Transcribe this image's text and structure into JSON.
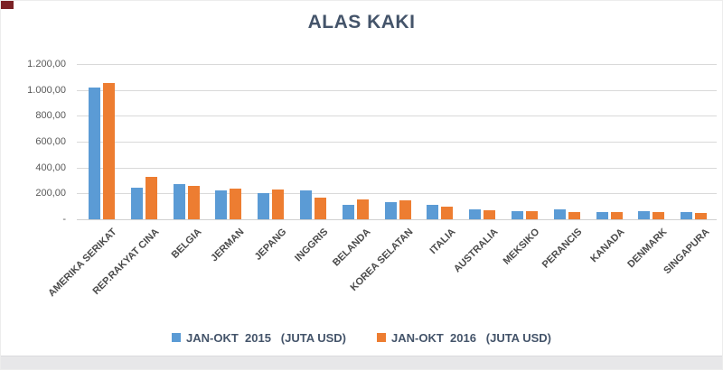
{
  "title": "ALAS KAKI",
  "colors": {
    "title_text": "#44546a",
    "axis_text": "#595959",
    "category_text": "#4a4a4a",
    "gridline": "#d9d9d9",
    "series_2015": "#5b9bd5",
    "series_2016": "#ed7d31",
    "corner_mark": "#7b2125"
  },
  "y_axis": {
    "tick_labels": [
      "1.200,00",
      "1.000,00",
      "800,00",
      "600,00",
      "400,00",
      "200,00",
      "-"
    ],
    "tick_values": [
      1200,
      1000,
      800,
      600,
      400,
      200,
      0
    ]
  },
  "legend": {
    "items": [
      {
        "label": "JAN-OKT  2015   (JUTA USD)",
        "color": "#5b9bd5"
      },
      {
        "label": "JAN-OKT  2016   (JUTA USD)",
        "color": "#ed7d31"
      }
    ]
  },
  "chart_data": {
    "type": "bar",
    "title": "ALAS KAKI",
    "xlabel": "",
    "ylabel": "JUTA USD",
    "ylim": [
      0,
      1200
    ],
    "ytick_step": 200,
    "grid": true,
    "legend_position": "bottom",
    "categories": [
      "AMERIKA SERIKAT",
      "REP.RAKYAT CINA",
      "BELGIA",
      "JERMAN",
      "JEPANG",
      "INGGRIS",
      "BELANDA",
      "KOREA SELATAN",
      "ITALIA",
      "AUSTRALIA",
      "MEKSIKO",
      "PERANCIS",
      "KANADA",
      "DENMARK",
      "SINGAPURA"
    ],
    "series": [
      {
        "name": "JAN-OKT 2015 (JUTA USD)",
        "color": "#5b9bd5",
        "values": [
          1020,
          245,
          270,
          225,
          205,
          220,
          115,
          130,
          110,
          75,
          60,
          75,
          55,
          60,
          55
        ]
      },
      {
        "name": "JAN-OKT 2016 (JUTA USD)",
        "color": "#ed7d31",
        "values": [
          1055,
          325,
          255,
          240,
          230,
          170,
          155,
          150,
          95,
          70,
          60,
          55,
          55,
          55,
          50
        ]
      }
    ]
  }
}
